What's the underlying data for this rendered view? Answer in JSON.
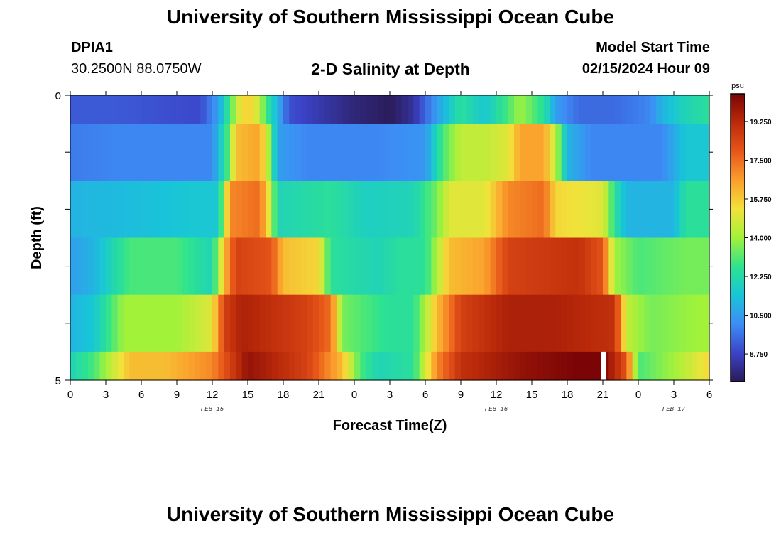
{
  "header": {
    "main_title": "University of Southern Mississippi Ocean Cube",
    "footer_title": "University of Southern Mississippi Ocean Cube",
    "station_id": "DPIA1",
    "station_coords": "30.2500N  88.0750W",
    "model_start_label": "Model Start Time",
    "model_start_value": "02/15/2024 Hour 09"
  },
  "chart_data": {
    "type": "heatmap",
    "title": "2-D Salinity at Depth",
    "xlabel": "Forecast Time(Z)",
    "ylabel": "Depth (ft)",
    "x_tick_labels": [
      "0",
      "3",
      "6",
      "9",
      "12",
      "15",
      "18",
      "21",
      "0",
      "3",
      "6",
      "9",
      "12",
      "15",
      "18",
      "21",
      "0",
      "3",
      "6"
    ],
    "date_labels": [
      {
        "label": "FEB 15",
        "at_hour": 12
      },
      {
        "label": "FEB 16",
        "at_hour": 36
      },
      {
        "label": "FEB 17",
        "at_hour": 51
      }
    ],
    "x_range_hours": [
      0,
      54
    ],
    "y_tick_labels": [
      {
        "label": "0",
        "depth": 0
      },
      {
        "label": "5",
        "depth": 5
      }
    ],
    "y_range_ft": [
      0,
      5
    ],
    "colorbar": {
      "unit": "psu",
      "min": 7.5,
      "max": 20.5,
      "ticks": [
        "19.250",
        "17.500",
        "15.750",
        "14.000",
        "12.250",
        "10.500",
        "8.750"
      ],
      "stops": [
        "#2a1a55",
        "#3b43c8",
        "#3d8df5",
        "#18c5d8",
        "#2ee38e",
        "#a2f23a",
        "#f2e23a",
        "#fb9e2c",
        "#e8561a",
        "#bb2a0a",
        "#7a0406"
      ]
    },
    "depth_layers": [
      "0-0.5 ft",
      "0.5-1.5 ft",
      "1.5-2.5 ft",
      "2.5-3.5 ft",
      "3.5-4.5 ft",
      "4.5-5 ft"
    ],
    "salinity_keyframes": [
      [
        [
          0,
          9.2
        ],
        [
          4,
          9.2
        ],
        [
          8,
          9.0
        ],
        [
          11,
          8.9
        ],
        [
          12.5,
          10.5
        ],
        [
          13.5,
          13
        ],
        [
          14.5,
          15.5
        ],
        [
          15.5,
          15.5
        ],
        [
          16.5,
          13
        ],
        [
          17.5,
          11
        ],
        [
          18.5,
          9
        ],
        [
          21,
          8.5
        ],
        [
          24,
          7.9
        ],
        [
          26.8,
          7.6
        ],
        [
          27,
          7.5
        ],
        [
          27.2,
          7.6
        ],
        [
          29,
          8.3
        ],
        [
          31,
          10.5
        ],
        [
          33,
          12.5
        ],
        [
          35,
          11.5
        ],
        [
          37,
          13
        ],
        [
          38,
          14
        ],
        [
          40,
          12.5
        ],
        [
          41,
          10.5
        ],
        [
          43,
          9.5
        ],
        [
          46,
          9.5
        ],
        [
          49,
          10
        ],
        [
          50,
          11
        ],
        [
          52,
          12
        ],
        [
          54,
          12.5
        ]
      ],
      [
        [
          0,
          9.8
        ],
        [
          4,
          10
        ],
        [
          8,
          10
        ],
        [
          12,
          10
        ],
        [
          13.3,
          13
        ],
        [
          14,
          16
        ],
        [
          16,
          16.5
        ],
        [
          16.8,
          14
        ],
        [
          17.5,
          10.5
        ],
        [
          20,
          10
        ],
        [
          26,
          10
        ],
        [
          30,
          10.3
        ],
        [
          31.5,
          13
        ],
        [
          33,
          14.5
        ],
        [
          35,
          14.5
        ],
        [
          37,
          15
        ],
        [
          38,
          16.5
        ],
        [
          40,
          16.5
        ],
        [
          41,
          14.5
        ],
        [
          42,
          11
        ],
        [
          44,
          10
        ],
        [
          50,
          10
        ],
        [
          52,
          11.5
        ],
        [
          54,
          11.5
        ]
      ],
      [
        [
          0,
          11
        ],
        [
          5,
          11.2
        ],
        [
          10,
          11.5
        ],
        [
          12.5,
          11.5
        ],
        [
          13.5,
          17
        ],
        [
          16,
          17.5
        ],
        [
          16.8,
          15
        ],
        [
          17.5,
          12
        ],
        [
          22,
          12.5
        ],
        [
          25,
          11.8
        ],
        [
          29,
          12
        ],
        [
          31,
          13.5
        ],
        [
          32,
          15
        ],
        [
          35,
          15
        ],
        [
          37,
          17
        ],
        [
          40,
          17.5
        ],
        [
          41,
          15.5
        ],
        [
          45,
          15
        ],
        [
          46,
          12.5
        ],
        [
          47,
          11
        ],
        [
          51,
          11
        ],
        [
          52,
          12.5
        ],
        [
          54,
          12.5
        ]
      ],
      [
        [
          0,
          10.5
        ],
        [
          2,
          11
        ],
        [
          5,
          13
        ],
        [
          9,
          13
        ],
        [
          12,
          12
        ],
        [
          13,
          16
        ],
        [
          14,
          18.5
        ],
        [
          17,
          18
        ],
        [
          18,
          16
        ],
        [
          21,
          15.5
        ],
        [
          22,
          12.5
        ],
        [
          26,
          12
        ],
        [
          28,
          12.5
        ],
        [
          30,
          12.5
        ],
        [
          32,
          16
        ],
        [
          35,
          16.5
        ],
        [
          37,
          18.5
        ],
        [
          43,
          19
        ],
        [
          45,
          18
        ],
        [
          46,
          14
        ],
        [
          48,
          13
        ],
        [
          52,
          13.5
        ],
        [
          54,
          13.5
        ]
      ],
      [
        [
          0,
          11
        ],
        [
          2,
          11.5
        ],
        [
          4.5,
          14
        ],
        [
          9,
          14
        ],
        [
          12,
          15
        ],
        [
          13,
          18.5
        ],
        [
          14.5,
          19.5
        ],
        [
          20,
          18.5
        ],
        [
          22,
          17.5
        ],
        [
          23,
          13.5
        ],
        [
          27,
          12.5
        ],
        [
          29,
          12.5
        ],
        [
          31,
          16
        ],
        [
          33,
          18.5
        ],
        [
          37,
          19.5
        ],
        [
          41,
          19.5
        ],
        [
          46,
          19
        ],
        [
          47,
          14.5
        ],
        [
          49,
          13.5
        ],
        [
          53,
          14
        ],
        [
          54,
          14
        ]
      ],
      [
        [
          0,
          12
        ],
        [
          2,
          13
        ],
        [
          5,
          16
        ],
        [
          8,
          16
        ],
        [
          12,
          17
        ],
        [
          14,
          19
        ],
        [
          15,
          20
        ],
        [
          20,
          18.5
        ],
        [
          23,
          16
        ],
        [
          24.5,
          13
        ],
        [
          26,
          12
        ],
        [
          29,
          12.5
        ],
        [
          31,
          17
        ],
        [
          33,
          19
        ],
        [
          38,
          20
        ],
        [
          43,
          20.5
        ],
        [
          45,
          20.5
        ],
        [
          47,
          18
        ],
        [
          48,
          13
        ],
        [
          51,
          14
        ],
        [
          53,
          15
        ],
        [
          54,
          15.5
        ]
      ]
    ],
    "layer_bounds_ft": [
      0,
      0.5,
      1.5,
      2.5,
      3.5,
      4.5,
      5
    ],
    "white_gap_hour": 45
  }
}
